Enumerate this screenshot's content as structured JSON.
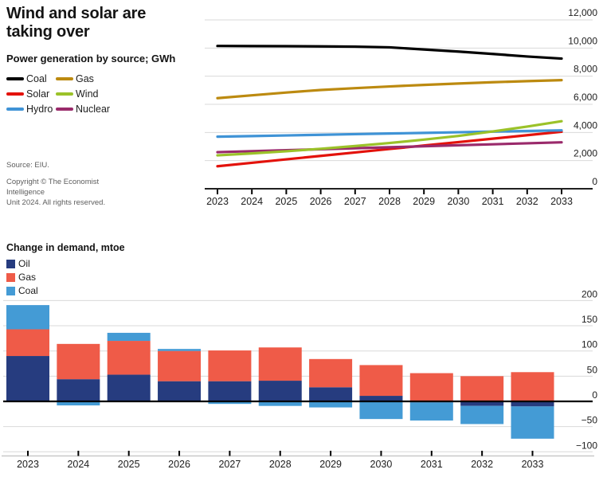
{
  "header": {
    "title_line1": "Wind and solar are",
    "title_line2": "taking over",
    "subtitle": "Power generation by source; GWh"
  },
  "source": {
    "line1": "Source: EIU.",
    "line2": "Copyright © The Economist",
    "line3": "Intelligence",
    "line4": "Unit 2024. All rights reserved."
  },
  "colors": {
    "gridline": "#d9d9d9",
    "axis": "#000000",
    "bottom_axis_line": "#c9c9c9",
    "text": "#1d1d1d",
    "muted_text": "#5d5d5d"
  },
  "chart_data": [
    {
      "type": "line",
      "title": "Wind and solar are taking over",
      "subtitle": "Power generation by source; GWh",
      "x": [
        2023,
        2024,
        2025,
        2026,
        2027,
        2028,
        2029,
        2030,
        2031,
        2032,
        2033
      ],
      "ylim": [
        0,
        12000
      ],
      "yticks": [
        0,
        2000,
        4000,
        6000,
        8000,
        10000,
        12000
      ],
      "grid": true,
      "legend_position": "top-left",
      "series": [
        {
          "name": "Coal",
          "color": "#000000",
          "values": [
            10150,
            10140,
            10130,
            10120,
            10100,
            10050,
            9900,
            9750,
            9580,
            9400,
            9250
          ]
        },
        {
          "name": "Gas",
          "color": "#bc8a10",
          "values": [
            6440,
            6640,
            6840,
            7020,
            7150,
            7270,
            7380,
            7480,
            7570,
            7650,
            7720
          ]
        },
        {
          "name": "Solar",
          "color": "#e3120b",
          "values": [
            1600,
            1845,
            2090,
            2335,
            2580,
            2825,
            3070,
            3315,
            3560,
            3805,
            4050
          ]
        },
        {
          "name": "Wind",
          "color": "#9bc229",
          "values": [
            2375,
            2510,
            2665,
            2840,
            3035,
            3250,
            3490,
            3755,
            4070,
            4420,
            4800
          ]
        },
        {
          "name": "Hydro",
          "color": "#3f93d6",
          "values": [
            3700,
            3745,
            3790,
            3835,
            3880,
            3925,
            3970,
            4015,
            4060,
            4105,
            4150
          ]
        },
        {
          "name": "Nuclear",
          "color": "#9a2a6b",
          "values": [
            2600,
            2670,
            2740,
            2810,
            2880,
            2950,
            3020,
            3090,
            3160,
            3230,
            3300
          ]
        }
      ]
    },
    {
      "type": "bar",
      "stacked": true,
      "title": "Change in demand, mtoe",
      "categories": [
        2023,
        2024,
        2025,
        2026,
        2027,
        2028,
        2029,
        2030,
        2031,
        2032,
        2033
      ],
      "ylim": [
        -100,
        200
      ],
      "yticks": [
        -100,
        -50,
        0,
        50,
        100,
        150,
        200
      ],
      "grid": true,
      "legend_position": "top-left",
      "series": [
        {
          "name": "Oil",
          "color": "#263c7f",
          "values": [
            90,
            44,
            53,
            40,
            40,
            41,
            28,
            11,
            -2,
            -9,
            -10
          ]
        },
        {
          "name": "Gas",
          "color": "#ef5b48",
          "values": [
            53,
            70,
            67,
            60,
            61,
            66,
            56,
            61,
            56,
            50,
            58
          ]
        },
        {
          "name": "Coal",
          "color": "#449bd5",
          "values": [
            48,
            -8,
            16,
            4,
            -5,
            -9,
            -12,
            -35,
            -36,
            -36,
            -64
          ]
        }
      ]
    }
  ]
}
